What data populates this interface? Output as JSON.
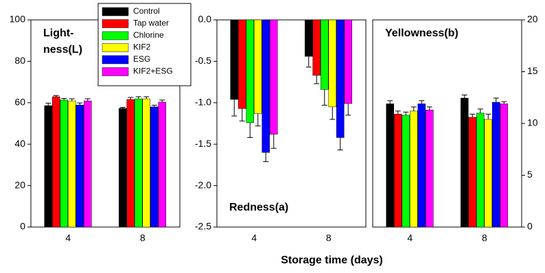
{
  "chart_data": [
    {
      "type": "bar",
      "annotation_lines": [
        "Light-",
        "ness(L)"
      ],
      "annotation_position": "top-left",
      "categories": [
        "4",
        "8"
      ],
      "ylim": [
        0,
        100
      ],
      "yticks": [
        0,
        20,
        40,
        60,
        80,
        100
      ],
      "y_axis_side": "left",
      "grid": false,
      "series": [
        {
          "name": "Control",
          "color": "#000000",
          "values": [
            58.6,
            57.3
          ],
          "errors": [
            1.2,
            0.5
          ]
        },
        {
          "name": "Tap water",
          "color": "#ff0000",
          "values": [
            62.9,
            61.6
          ],
          "errors": [
            0.5,
            1
          ]
        },
        {
          "name": "Chlorine",
          "color": "#00ff00",
          "values": [
            61.3,
            61.9
          ],
          "errors": [
            0.8,
            1
          ]
        },
        {
          "name": "KIF2",
          "color": "#ffff00",
          "values": [
            60.9,
            61.9
          ],
          "errors": [
            1,
            1
          ]
        },
        {
          "name": "ESG",
          "color": "#0000ff",
          "values": [
            58.9,
            58
          ],
          "errors": [
            1,
            0.8
          ]
        },
        {
          "name": "KIF2+ESG",
          "color": "#ff00ff",
          "values": [
            60.9,
            60.3
          ],
          "errors": [
            1,
            1
          ]
        }
      ]
    },
    {
      "type": "bar",
      "annotation_lines": [
        "Redness(a)"
      ],
      "annotation_position": "bottom-left",
      "x_label": "Storage time (days)",
      "categories": [
        "4",
        "8"
      ],
      "ylim": [
        -2.5,
        0
      ],
      "y_axis_side": "left",
      "grid": false,
      "yticks": [
        {
          "value": -2.5,
          "label": "-2.5"
        },
        {
          "value": -2,
          "label": "-2.0"
        },
        {
          "value": -1.5,
          "label": "-1.5"
        },
        {
          "value": -1,
          "label": "-1.0"
        },
        {
          "value": -0.5,
          "label": "-0.5"
        },
        {
          "value": 0,
          "label": "0.0"
        }
      ],
      "series": [
        {
          "values": [
            -0.96,
            -0.44
          ],
          "errors": [
            0.2,
            0.13
          ]
        },
        {
          "values": [
            -1.07,
            -0.67
          ],
          "errors": [
            0.15,
            0.1
          ]
        },
        {
          "values": [
            -1.24,
            -0.84
          ],
          "errors": [
            0.18,
            0.19
          ]
        },
        {
          "values": [
            -1.13,
            -1.05
          ],
          "errors": [
            0.15,
            0.15
          ]
        },
        {
          "values": [
            -1.6,
            -1.42
          ],
          "errors": [
            0.11,
            0.15
          ]
        },
        {
          "values": [
            -1.38,
            -1.01
          ],
          "errors": [
            0.17,
            0.14
          ]
        }
      ]
    },
    {
      "type": "bar",
      "annotation_lines": [
        "Yellowness(b)"
      ],
      "annotation_position": "top-left",
      "categories": [
        "4",
        "8"
      ],
      "ylim": [
        0,
        20
      ],
      "yticks": [
        0,
        5,
        10,
        15,
        20
      ],
      "y_axis_side": "right",
      "grid": false,
      "series": [
        {
          "values": [
            11.9,
            12.45
          ],
          "errors": [
            0.3,
            0.3
          ]
        },
        {
          "values": [
            10.9,
            10.6
          ],
          "errors": [
            0.3,
            0.3
          ]
        },
        {
          "values": [
            10.8,
            11
          ],
          "errors": [
            0.3,
            0.4
          ]
        },
        {
          "values": [
            11.2,
            10.4
          ],
          "errors": [
            0.4,
            0.5
          ]
        },
        {
          "values": [
            11.9,
            12.05
          ],
          "errors": [
            0.3,
            0.4
          ]
        },
        {
          "values": [
            11.3,
            11.9
          ],
          "errors": [
            0.3,
            0.2
          ]
        }
      ]
    }
  ]
}
